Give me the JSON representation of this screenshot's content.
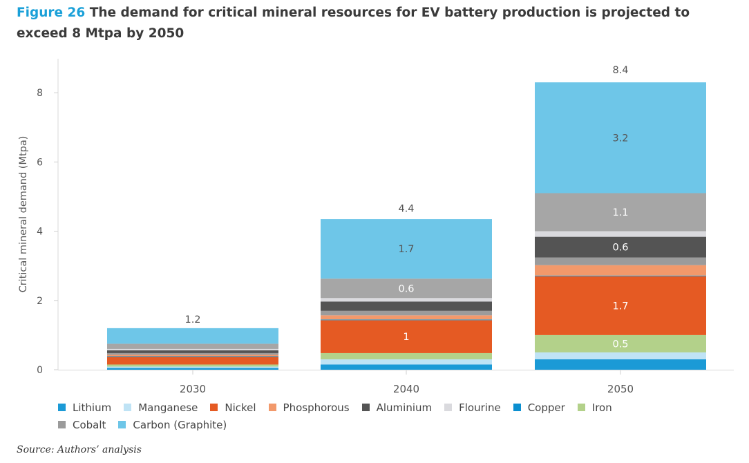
{
  "title": {
    "figure_label": "Figure 26",
    "text": "The demand for critical mineral resources for EV battery production is projected to exceed 8 Mtpa by 2050"
  },
  "source": "Source: Authors’ analysis",
  "chart_data": {
    "type": "bar",
    "stacked": true,
    "categories": [
      "2030",
      "2040",
      "2050"
    ],
    "ylabel": "Critical mineral demand (Mtpa)",
    "xlabel": "",
    "ylim": [
      0,
      8.9
    ],
    "yticks": [
      0,
      2,
      4,
      6,
      8
    ],
    "grid": false,
    "legend_position": "bottom",
    "totals": [
      1.2,
      4.4,
      8.4
    ],
    "total_labels": [
      "1.2",
      "4.4",
      "8.4"
    ],
    "series": [
      {
        "name": "Lithium",
        "color": "#1b9ad6",
        "values": [
          0.05,
          0.15,
          0.3
        ],
        "labels": [
          "",
          "",
          ""
        ]
      },
      {
        "name": "Manganese",
        "color": "#bfe3f5",
        "values": [
          0.04,
          0.15,
          0.2
        ],
        "labels": [
          "",
          "",
          ""
        ]
      },
      {
        "name": "Iron",
        "color": "#b3d18a",
        "values": [
          0.06,
          0.18,
          0.5
        ],
        "labels": [
          "",
          "",
          "0.5"
        ]
      },
      {
        "name": "Nickel",
        "color": "#e55a23",
        "values": [
          0.22,
          0.95,
          1.7
        ],
        "labels": [
          "",
          "1",
          "1.7"
        ]
      },
      {
        "name": "Copper",
        "color": "#0b8fd0",
        "values": [
          0.02,
          0.02,
          0.02
        ],
        "labels": [
          "",
          "",
          ""
        ]
      },
      {
        "name": "Phosphorous",
        "color": "#f2996b",
        "values": [
          0.04,
          0.12,
          0.3
        ],
        "labels": [
          "",
          "",
          ""
        ]
      },
      {
        "name": "Cobalt",
        "color": "#9b9b9b",
        "values": [
          0.05,
          0.13,
          0.22
        ],
        "labels": [
          "",
          "",
          ""
        ]
      },
      {
        "name": "Aluminium",
        "color": "#545454",
        "values": [
          0.08,
          0.27,
          0.6
        ],
        "labels": [
          "",
          "",
          "0.6"
        ]
      },
      {
        "name": "Flourine",
        "color": "#dadade",
        "values": [
          0.04,
          0.1,
          0.16
        ],
        "labels": [
          "",
          "",
          ""
        ]
      },
      {
        "name": "Cobalt",
        "color": "#a6a6a6",
        "values": [
          0.15,
          0.56,
          1.1
        ],
        "labels": [
          "",
          "0.6",
          "1.1"
        ]
      },
      {
        "name": "Carbon (Graphite)",
        "color": "#6ec6e8",
        "values": [
          0.45,
          1.72,
          3.2
        ],
        "labels": [
          "",
          "1.7",
          "3.2"
        ]
      }
    ],
    "legend": [
      {
        "name": "Lithium",
        "color": "#1b9ad6"
      },
      {
        "name": "Manganese",
        "color": "#bfe3f5"
      },
      {
        "name": "Nickel",
        "color": "#e55a23"
      },
      {
        "name": "Phosphorous",
        "color": "#f2996b"
      },
      {
        "name": "Aluminium",
        "color": "#545454"
      },
      {
        "name": "Flourine",
        "color": "#dadade"
      },
      {
        "name": "Copper",
        "color": "#0b8fd0"
      },
      {
        "name": "Iron",
        "color": "#b3d18a"
      },
      {
        "name": "Cobalt",
        "color": "#9b9b9b"
      },
      {
        "name": "Carbon (Graphite)",
        "color": "#6ec6e8"
      }
    ]
  }
}
